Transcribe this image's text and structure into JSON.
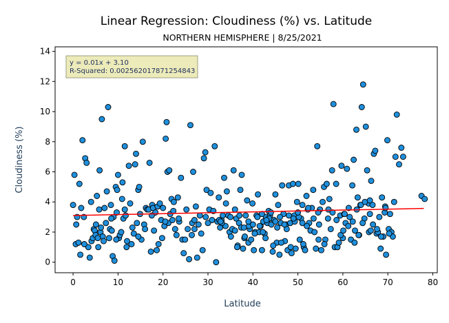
{
  "chart_data": {
    "type": "scatter",
    "title": "Linear Regression: Cloudiness (%) vs. Latitude",
    "subtitle": "NORTHERN HEMISPHERE | 8/25/2021",
    "xlabel": "Latitude",
    "ylabel": "Cloudiness (%)",
    "xlim": [
      -4,
      81
    ],
    "ylim": [
      -0.7,
      14.3
    ],
    "xticks": [
      0,
      10,
      20,
      30,
      40,
      50,
      60,
      70,
      80
    ],
    "yticks": [
      0,
      2,
      4,
      6,
      8,
      10,
      12,
      14
    ],
    "grid": false,
    "annotation": {
      "line1": "y = 0.01x + 3.10",
      "line2": "R-Squared: 0.002562017871254843"
    },
    "regression": {
      "slope": 0.006,
      "intercept": 3.1,
      "x_range": [
        0,
        78
      ]
    },
    "colors": {
      "point_fill": "#1f8fdc",
      "point_edge": "#000000",
      "regression_line": "#ff0000",
      "annotation_fill": "#ecebb9"
    },
    "x": [
      0,
      0.3,
      0.6,
      0.7,
      0.9,
      1.2,
      1.4,
      1.6,
      1.8,
      2.1,
      2.4,
      2.7,
      3.0,
      3.4,
      3.7,
      4.0,
      4.1,
      4.4,
      4.6,
      4.8,
      5.0,
      5.1,
      5.3,
      5.6,
      5.8,
      5.9,
      6.1,
      6.2,
      6.4,
      6.6,
      6.8,
      7.0,
      7.3,
      7.5,
      7.8,
      8.0,
      8.2,
      8.4,
      8.6,
      8.8,
      9.0,
      9.2,
      9.5,
      9.7,
      9.8,
      10.0,
      10.2,
      10.4,
      10.7,
      10.9,
      11.0,
      11.2,
      11.5,
      11.7,
      11.9,
      12.0,
      12.4,
      12.7,
      13.0,
      13.2,
      13.5,
      13.8,
      14.0,
      14.2,
      14.5,
      14.7,
      14.9,
      15.2,
      15.5,
      15.8,
      16.0,
      16.2,
      16.5,
      16.8,
      17.0,
      17.3,
      17.6,
      17.8,
      18.0,
      18.3,
      18.6,
      18.8,
      19.0,
      19.3,
      19.6,
      19.8,
      20.0,
      20.3,
      20.6,
      20.8,
      21.0,
      21.2,
      21.4,
      21.6,
      21.9,
      22.1,
      22.4,
      22.7,
      23.0,
      23.3,
      23.6,
      24.0,
      24.3,
      24.6,
      24.9,
      25.2,
      25.5,
      25.8,
      26.1,
      26.4,
      26.7,
      27.0,
      27.3,
      27.6,
      27.9,
      28.2,
      28.5,
      28.8,
      29.1,
      29.4,
      29.7,
      30.0,
      30.3,
      30.6,
      30.9,
      31.2,
      31.5,
      31.8,
      32.1,
      32.4,
      32.7,
      33.0,
      33.3,
      33.6,
      33.9,
      34.2,
      34.5,
      34.8,
      35.1,
      35.4,
      35.7,
      36.0,
      36.3,
      36.6,
      36.9,
      37.2,
      37.5,
      37.8,
      38.1,
      38.4,
      38.7,
      39.0,
      39.3,
      39.6,
      39.9,
      40.2,
      40.5,
      40.8,
      41.1,
      41.4,
      41.7,
      42.0,
      42.3,
      42.6,
      42.9,
      43.2,
      43.5,
      43.8,
      44.1,
      44.4,
      44.7,
      45.0,
      45.3,
      45.6,
      45.9,
      46.2,
      46.5,
      46.8,
      47.1,
      47.4,
      47.7,
      48.0,
      48.3,
      48.6,
      48.9,
      49.2,
      49.5,
      49.8,
      50.1,
      50.4,
      50.7,
      51.0,
      51.3,
      51.6,
      51.9,
      52.2,
      52.5,
      52.8,
      53.1,
      53.4,
      53.7,
      54.0,
      54.3,
      54.6,
      54.9,
      55.2,
      55.5,
      55.8,
      56.1,
      56.4,
      56.7,
      57.0,
      57.3,
      57.6,
      57.9,
      58.2,
      58.5,
      58.8,
      59.1,
      59.4,
      59.7,
      60.0,
      60.3,
      60.6,
      60.9,
      61.2,
      61.5,
      61.8,
      62.1,
      62.4,
      62.7,
      63.0,
      63.3,
      63.6,
      63.9,
      64.2,
      64.5,
      64.8,
      65.1,
      65.4,
      65.7,
      66.0,
      66.3,
      66.6,
      66.9,
      67.2,
      67.5,
      67.8,
      68.1,
      68.4,
      68.7,
      69.0,
      69.3,
      69.6,
      69.9,
      70.2,
      70.5,
      70.8,
      71.1,
      71.4,
      71.7,
      72.0,
      72.5,
      73.0,
      73.4,
      77.5,
      78.2,
      36.5,
      37.4,
      38.2,
      39.1,
      40.4,
      41.5,
      42.8,
      43.6,
      44.5,
      45.4,
      46.3,
      47.5,
      48.4,
      49.3,
      50.2,
      51.2,
      52.3,
      53.5,
      54.7,
      55.9,
      56.8,
      57.7,
      58.6,
      59.5,
      60.4,
      61.3,
      62.2,
      63.1,
      64.0,
      64.9,
      65.8,
      66.7,
      67.6,
      68.5,
      69.4,
      70.3,
      60.1,
      62.6,
      64.4,
      66.2,
      33.1,
      34.0,
      35.0,
      36.0,
      37.0,
      38.0,
      39.0,
      40.0,
      41.0,
      42.0,
      43.0,
      44.0,
      45.0,
      46.0,
      47.0,
      48.0,
      49.0,
      50.0,
      51.0,
      52.0,
      2.5,
      5.5,
      8.5,
      11.5,
      14.5,
      17.5,
      20.5,
      23.5,
      26.5,
      29.5,
      32.5,
      9.6,
      32.8,
      42.2,
      63.5,
      66.0,
      69.5,
      22.3,
      27.0,
      54.5
    ],
    "y": [
      3.8,
      5.8,
      1.2,
      2.5,
      3.0,
      1.3,
      5.2,
      0.5,
      3.6,
      8.1,
      3.0,
      6.9,
      6.6,
      1.0,
      0.3,
      4.0,
      1.4,
      1.6,
      2.2,
      2.1,
      1.8,
      2.5,
      4.4,
      1.0,
      3.5,
      6.1,
      2.0,
      2.3,
      9.5,
      1.7,
      1.4,
      3.6,
      2.6,
      4.7,
      10.3,
      1.6,
      2.2,
      3.8,
      2.1,
      0.4,
      3.0,
      0.1,
      5.0,
      3.3,
      4.8,
      5.8,
      1.6,
      1.8,
      2.0,
      4.2,
      5.3,
      2.9,
      7.7,
      3.1,
      1.0,
      1.4,
      6.4,
      3.9,
      1.2,
      2.3,
      1.9,
      6.5,
      7.2,
      2.6,
      4.8,
      5.0,
      3.2,
      1.5,
      8.0,
      2.5,
      2.2,
      3.6,
      3.5,
      3.5,
      6.6,
      0.7,
      3.8,
      3.6,
      2.1,
      3.3,
      0.8,
      3.7,
      1.2,
      3.9,
      2.8,
      1.6,
      3.6,
      2.4,
      8.2,
      9.3,
      6.0,
      2.6,
      6.1,
      3.2,
      4.2,
      2.8,
      4.0,
      2.2,
      1.8,
      4.3,
      2.7,
      5.6,
      1.5,
      0.6,
      1.5,
      3.5,
      2.2,
      0.2,
      9.1,
      1.8,
      6.0,
      2.2,
      3.7,
      0.3,
      2.5,
      3.1,
      1.9,
      0.8,
      6.9,
      7.3,
      4.8,
      2.6,
      3.5,
      4.6,
      2.8,
      3.4,
      7.7,
      0.0,
      2.7,
      4.3,
      2.3,
      2.8,
      3.1,
      5.6,
      2.4,
      4.7,
      3.1,
      2.0,
      1.7,
      2.2,
      6.1,
      3.5,
      2.9,
      1.1,
      2.6,
      4.8,
      5.8,
      0.9,
      1.6,
      3.1,
      4.1,
      1.3,
      2.2,
      1.5,
      3.9,
      0.8,
      2.0,
      3.1,
      4.5,
      2.0,
      2.4,
      0.8,
      2.7,
      1.9,
      3.0,
      2.6,
      3.4,
      3.1,
      2.5,
      0.7,
      2.8,
      4.5,
      1.3,
      3.8,
      0.5,
      2.6,
      5.1,
      3.2,
      1.4,
      2.5,
      0.8,
      5.1,
      2.6,
      0.6,
      5.2,
      3.1,
      0.9,
      4.0,
      5.2,
      1.5,
      2.9,
      3.8,
      1.0,
      0.8,
      4.4,
      3.5,
      2.6,
      2.1,
      3.6,
      4.8,
      2.0,
      0.9,
      7.7,
      1.5,
      3.5,
      0.8,
      4.0,
      5.0,
      1.5,
      5.2,
      2.9,
      4.2,
      2.2,
      6.1,
      10.5,
      1.0,
      5.2,
      1.0,
      1.3,
      3.1,
      6.4,
      1.6,
      3.2,
      2.6,
      6.2,
      2.4,
      3.0,
      1.5,
      5.1,
      6.8,
      2.1,
      8.8,
      4.3,
      1.8,
      3.8,
      10.3,
      11.8,
      2.9,
      9.0,
      6.1,
      3.9,
      3.2,
      5.4,
      3.8,
      7.2,
      7.4,
      1.9,
      2.0,
      3.0,
      0.9,
      4.3,
      1.7,
      3.3,
      0.5,
      8.1,
      2.2,
      3.2,
      2.0,
      1.7,
      4.0,
      7.0,
      9.8,
      6.5,
      7.6,
      7.0,
      4.4,
      4.2,
      1.0,
      2.3,
      1.7,
      2.4,
      1.9,
      2.4,
      1.6,
      2.9,
      1.1,
      2.3,
      1.3,
      2.2,
      1.0,
      2.7,
      3.0,
      1.2,
      3.6,
      2.9,
      2.5,
      1.2,
      3.5,
      3.3,
      2.8,
      1.8,
      3.2,
      3.6,
      2.7,
      3.5,
      3.8,
      4.0,
      2.0,
      2.5,
      2.2,
      1.7,
      3.7,
      1.9,
      2.1,
      1.3,
      2.6,
      2.1,
      2.6,
      3.9,
      3.0,
      2.1,
      3.1,
      2.3,
      2.7,
      2.5,
      3.0,
      3.2,
      2.8,
      3.3,
      2.7,
      3.0,
      2.5,
      3.1,
      2.9,
      3.3,
      2.6,
      2.4,
      1.2,
      1.6,
      2.9,
      3.5,
      1.7,
      3.1,
      2.7,
      2.9,
      2.6,
      3.0,
      2.8,
      1.5,
      2.7,
      2.0,
      1.8,
      4.1,
      3.6,
      3.4,
      2.8,
      3.3
    ]
  }
}
